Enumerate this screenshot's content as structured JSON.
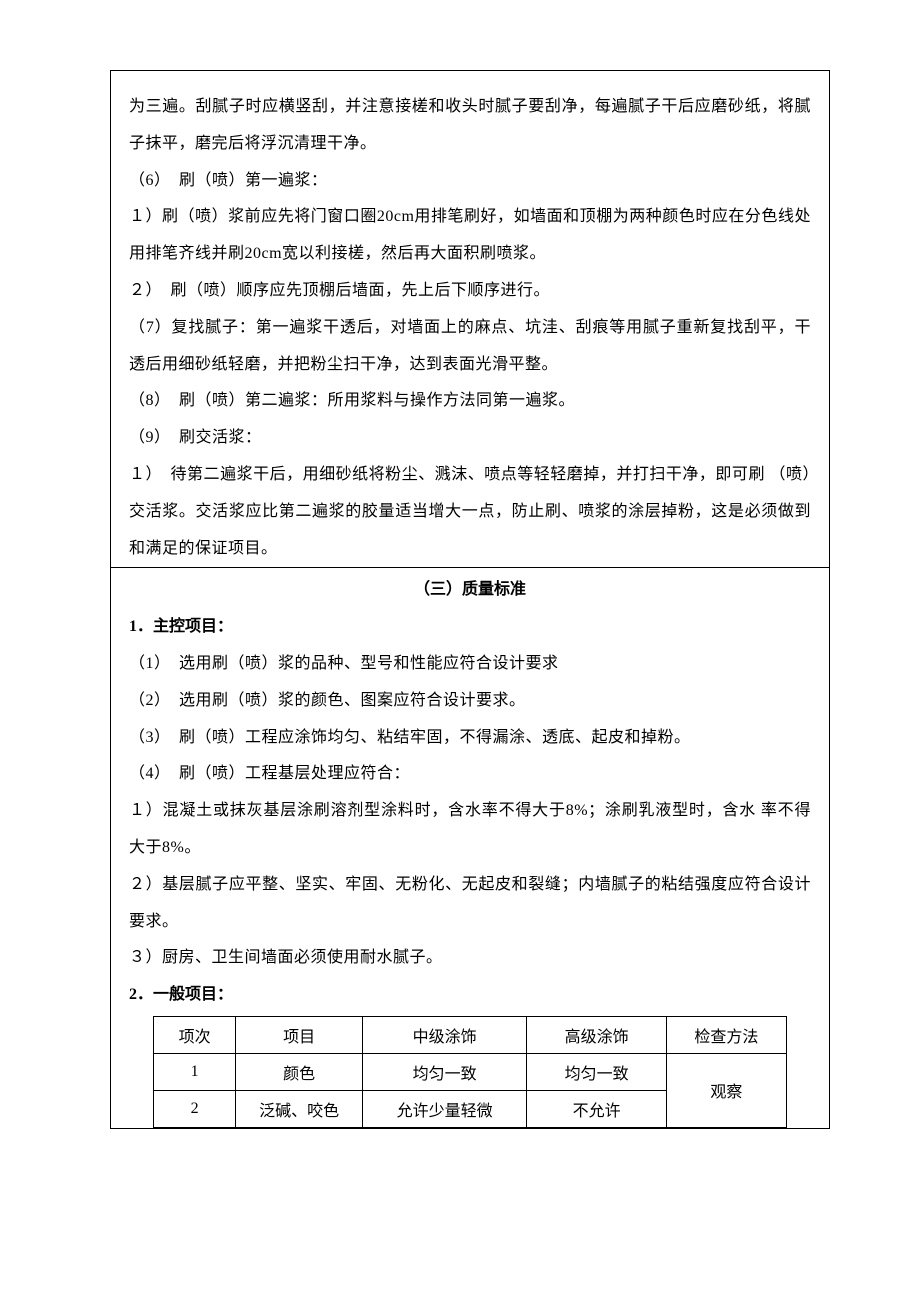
{
  "p1": "为三遍。刮腻子时应横竖刮，并注意接槎和收头时腻子要刮净，每遍腻子干后应磨砂纸，将腻子抹平，磨完后将浮沉清理干净。",
  "p2": "（6）　刷（喷）第一遍浆：",
  "p3": "１）刷（喷）浆前应先将门窗口圈20cm用排笔刷好，如墙面和顶棚为两种颜色时应在分色线处用排笔齐线并刷20cm宽以利接槎，然后再大面积刷喷浆。",
  "p4": "２）　刷（喷）顺序应先顶棚后墙面，先上后下顺序进行。",
  "p5": "（7）复找腻子：第一遍浆干透后，对墙面上的麻点、坑洼、刮痕等用腻子重新复找刮平，干透后用细砂纸轻磨，并把粉尘扫干净，达到表面光滑平整。",
  "p6": "（8）　刷（喷）第二遍浆：所用浆料与操作方法同第一遍浆。",
  "p7": "（9）　刷交活浆：",
  "p8": "１）　待第二遍浆干后，用细砂纸将粉尘、溅沫、喷点等轻轻磨掉，并打扫干净，即可刷 （喷）交活浆。交活浆应比第二遍浆的胶量适当增大一点，防止刷、喷浆的涂层掉粉，这是必须做到和满足的保证项目。",
  "section3": "（三）质量标准",
  "sub1": "1．主控项目：",
  "q1": "（1）　选用刷（喷）浆的品种、型号和性能应符合设计要求",
  "q2": "（2）　选用刷（喷）浆的颜色、图案应符合设计要求。",
  "q3": "（3）　刷（喷）工程应涂饰均匀、粘结牢固，不得漏涂、透底、起皮和掉粉。",
  "q4": "（4）　刷（喷）工程基层处理应符合：",
  "q5": "１）混凝土或抹灰基层涂刷溶剂型涂料时，含水率不得大于8%；涂刷乳液型时，含水 率不得大于8%。",
  "q6": "２）基层腻子应平整、坚实、牢固、无粉化、无起皮和裂缝；内墙腻子的粘结强度应符合设计要求。",
  "q7": "３）厨房、卫生间墙面必须使用耐水腻子。",
  "sub2": "2．一般项目：",
  "table": {
    "headers": [
      "项次",
      "项目",
      "中级涂饰",
      "高级涂饰",
      "检查方法"
    ],
    "rows": [
      [
        "1",
        "颜色",
        "均匀一致",
        "均匀一致"
      ],
      [
        "2",
        "泛碱、咬色",
        "允许少量轻微",
        "不允许"
      ]
    ],
    "merged_col5": "观察"
  }
}
